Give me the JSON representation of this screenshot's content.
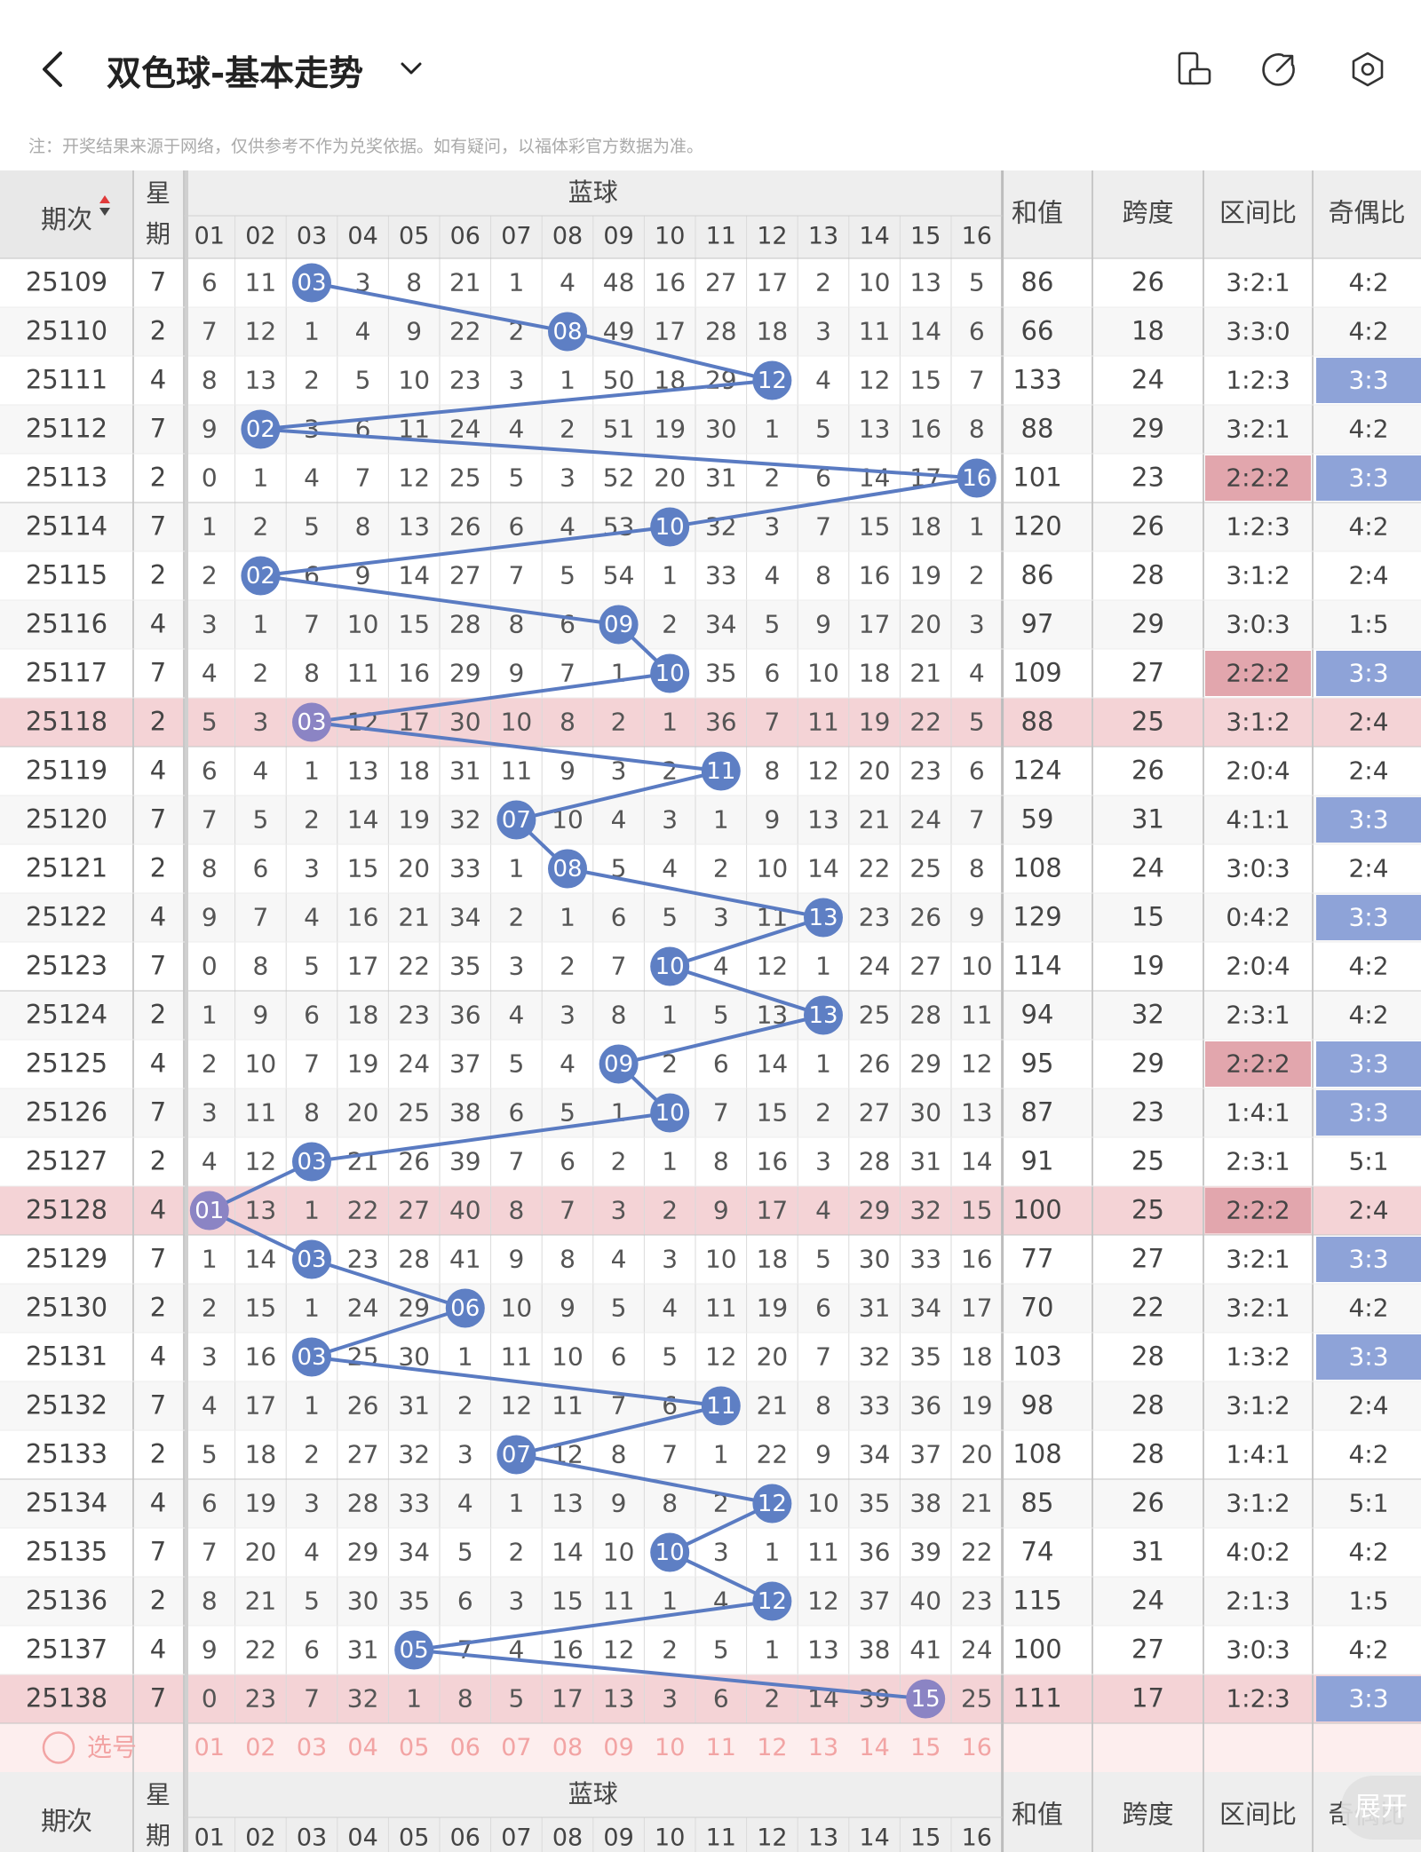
{
  "header": {
    "title": "双色球-基本走势",
    "note": "注：开奖结果来源于网络，仅供参考不作为兑奖依据。如有疑问，以福体彩官方数据为准。"
  },
  "table": {
    "col_period": "期次",
    "col_week": "星期",
    "col_blue": "蓝球",
    "col_sum": "和值",
    "col_span": "跨度",
    "col_range": "区间比",
    "col_oddeven": "奇偶比",
    "ball_labels": [
      "01",
      "02",
      "03",
      "04",
      "05",
      "06",
      "07",
      "08",
      "09",
      "10",
      "11",
      "12",
      "13",
      "14",
      "15",
      "16"
    ],
    "select_label": "选号",
    "footer_period": "-"
  },
  "rows": [
    {
      "p": "25109",
      "w": "7",
      "b": 3,
      "c": [
        "6",
        "11",
        "03",
        "3",
        "8",
        "21",
        "1",
        "4",
        "48",
        "16",
        "27",
        "17",
        "2",
        "10",
        "13",
        "5"
      ],
      "s": "86",
      "k": "26",
      "r": "3:2:1",
      "o": "4:2"
    },
    {
      "p": "25110",
      "w": "2",
      "b": 8,
      "c": [
        "7",
        "12",
        "1",
        "4",
        "9",
        "22",
        "2",
        "08",
        "49",
        "17",
        "28",
        "18",
        "3",
        "11",
        "14",
        "6"
      ],
      "s": "66",
      "k": "18",
      "r": "3:3:0",
      "o": "4:2"
    },
    {
      "p": "25111",
      "w": "4",
      "b": 12,
      "c": [
        "8",
        "13",
        "2",
        "5",
        "10",
        "23",
        "3",
        "1",
        "50",
        "18",
        "29",
        "12",
        "4",
        "12",
        "15",
        "7"
      ],
      "s": "133",
      "k": "24",
      "r": "1:2:3",
      "o": "3:3"
    },
    {
      "p": "25112",
      "w": "7",
      "b": 2,
      "c": [
        "9",
        "02",
        "3",
        "6",
        "11",
        "24",
        "4",
        "2",
        "51",
        "19",
        "30",
        "1",
        "5",
        "13",
        "16",
        "8"
      ],
      "s": "88",
      "k": "29",
      "r": "3:2:1",
      "o": "4:2"
    },
    {
      "p": "25113",
      "w": "2",
      "b": 16,
      "c": [
        "0",
        "1",
        "4",
        "7",
        "12",
        "25",
        "5",
        "3",
        "52",
        "20",
        "31",
        "2",
        "6",
        "14",
        "17",
        "16"
      ],
      "s": "101",
      "k": "23",
      "r": "2:2:2",
      "o": "3:3"
    },
    {
      "p": "25114",
      "w": "7",
      "b": 10,
      "c": [
        "1",
        "2",
        "5",
        "8",
        "13",
        "26",
        "6",
        "4",
        "53",
        "10",
        "32",
        "3",
        "7",
        "15",
        "18",
        "1"
      ],
      "s": "120",
      "k": "26",
      "r": "1:2:3",
      "o": "4:2"
    },
    {
      "p": "25115",
      "w": "2",
      "b": 2,
      "c": [
        "2",
        "02",
        "6",
        "9",
        "14",
        "27",
        "7",
        "5",
        "54",
        "1",
        "33",
        "4",
        "8",
        "16",
        "19",
        "2"
      ],
      "s": "86",
      "k": "28",
      "r": "3:1:2",
      "o": "2:4"
    },
    {
      "p": "25116",
      "w": "4",
      "b": 9,
      "c": [
        "3",
        "1",
        "7",
        "10",
        "15",
        "28",
        "8",
        "6",
        "09",
        "2",
        "34",
        "5",
        "9",
        "17",
        "20",
        "3"
      ],
      "s": "97",
      "k": "29",
      "r": "3:0:3",
      "o": "1:5"
    },
    {
      "p": "25117",
      "w": "7",
      "b": 10,
      "c": [
        "4",
        "2",
        "8",
        "11",
        "16",
        "29",
        "9",
        "7",
        "1",
        "10",
        "35",
        "6",
        "10",
        "18",
        "21",
        "4"
      ],
      "s": "109",
      "k": "27",
      "r": "2:2:2",
      "o": "3:3"
    },
    {
      "p": "25118",
      "w": "2",
      "b": 3,
      "c": [
        "5",
        "3",
        "03",
        "12",
        "17",
        "30",
        "10",
        "8",
        "2",
        "1",
        "36",
        "7",
        "11",
        "19",
        "22",
        "5"
      ],
      "s": "88",
      "k": "25",
      "r": "3:1:2",
      "o": "2:4"
    },
    {
      "p": "25119",
      "w": "4",
      "b": 11,
      "c": [
        "6",
        "4",
        "1",
        "13",
        "18",
        "31",
        "11",
        "9",
        "3",
        "2",
        "11",
        "8",
        "12",
        "20",
        "23",
        "6"
      ],
      "s": "124",
      "k": "26",
      "r": "2:0:4",
      "o": "2:4"
    },
    {
      "p": "25120",
      "w": "7",
      "b": 7,
      "c": [
        "7",
        "5",
        "2",
        "14",
        "19",
        "32",
        "07",
        "10",
        "4",
        "3",
        "1",
        "9",
        "13",
        "21",
        "24",
        "7"
      ],
      "s": "59",
      "k": "31",
      "r": "4:1:1",
      "o": "3:3"
    },
    {
      "p": "25121",
      "w": "2",
      "b": 8,
      "c": [
        "8",
        "6",
        "3",
        "15",
        "20",
        "33",
        "1",
        "08",
        "5",
        "4",
        "2",
        "10",
        "14",
        "22",
        "25",
        "8"
      ],
      "s": "108",
      "k": "24",
      "r": "3:0:3",
      "o": "2:4"
    },
    {
      "p": "25122",
      "w": "4",
      "b": 13,
      "c": [
        "9",
        "7",
        "4",
        "16",
        "21",
        "34",
        "2",
        "1",
        "6",
        "5",
        "3",
        "11",
        "13",
        "23",
        "26",
        "9"
      ],
      "s": "129",
      "k": "15",
      "r": "0:4:2",
      "o": "3:3"
    },
    {
      "p": "25123",
      "w": "7",
      "b": 10,
      "c": [
        "0",
        "8",
        "5",
        "17",
        "22",
        "35",
        "3",
        "2",
        "7",
        "10",
        "4",
        "12",
        "1",
        "24",
        "27",
        "10"
      ],
      "s": "114",
      "k": "19",
      "r": "2:0:4",
      "o": "4:2"
    },
    {
      "p": "25124",
      "w": "2",
      "b": 13,
      "c": [
        "1",
        "9",
        "6",
        "18",
        "23",
        "36",
        "4",
        "3",
        "8",
        "1",
        "5",
        "13",
        "13",
        "25",
        "28",
        "11"
      ],
      "s": "94",
      "k": "32",
      "r": "2:3:1",
      "o": "4:2"
    },
    {
      "p": "25125",
      "w": "4",
      "b": 9,
      "c": [
        "2",
        "10",
        "7",
        "19",
        "24",
        "37",
        "5",
        "4",
        "09",
        "2",
        "6",
        "14",
        "1",
        "26",
        "29",
        "12"
      ],
      "s": "95",
      "k": "29",
      "r": "2:2:2",
      "o": "3:3"
    },
    {
      "p": "25126",
      "w": "7",
      "b": 10,
      "c": [
        "3",
        "11",
        "8",
        "20",
        "25",
        "38",
        "6",
        "5",
        "1",
        "10",
        "7",
        "15",
        "2",
        "27",
        "30",
        "13"
      ],
      "s": "87",
      "k": "23",
      "r": "1:4:1",
      "o": "3:3"
    },
    {
      "p": "25127",
      "w": "2",
      "b": 3,
      "c": [
        "4",
        "12",
        "03",
        "21",
        "26",
        "39",
        "7",
        "6",
        "2",
        "1",
        "8",
        "16",
        "3",
        "28",
        "31",
        "14"
      ],
      "s": "91",
      "k": "25",
      "r": "2:3:1",
      "o": "5:1"
    },
    {
      "p": "25128",
      "w": "4",
      "b": 1,
      "c": [
        "01",
        "13",
        "1",
        "22",
        "27",
        "40",
        "8",
        "7",
        "3",
        "2",
        "9",
        "17",
        "4",
        "29",
        "32",
        "15"
      ],
      "s": "100",
      "k": "25",
      "r": "2:2:2",
      "o": "2:4"
    },
    {
      "p": "25129",
      "w": "7",
      "b": 3,
      "c": [
        "1",
        "14",
        "03",
        "23",
        "28",
        "41",
        "9",
        "8",
        "4",
        "3",
        "10",
        "18",
        "5",
        "30",
        "33",
        "16"
      ],
      "s": "77",
      "k": "27",
      "r": "3:2:1",
      "o": "3:3"
    },
    {
      "p": "25130",
      "w": "2",
      "b": 6,
      "c": [
        "2",
        "15",
        "1",
        "24",
        "29",
        "06",
        "10",
        "9",
        "5",
        "4",
        "11",
        "19",
        "6",
        "31",
        "34",
        "17"
      ],
      "s": "70",
      "k": "22",
      "r": "3:2:1",
      "o": "4:2"
    },
    {
      "p": "25131",
      "w": "4",
      "b": 3,
      "c": [
        "3",
        "16",
        "03",
        "25",
        "30",
        "1",
        "11",
        "10",
        "6",
        "5",
        "12",
        "20",
        "7",
        "32",
        "35",
        "18"
      ],
      "s": "103",
      "k": "28",
      "r": "1:3:2",
      "o": "3:3"
    },
    {
      "p": "25132",
      "w": "7",
      "b": 11,
      "c": [
        "4",
        "17",
        "1",
        "26",
        "31",
        "2",
        "12",
        "11",
        "7",
        "6",
        "11",
        "21",
        "8",
        "33",
        "36",
        "19"
      ],
      "s": "98",
      "k": "28",
      "r": "3:1:2",
      "o": "2:4"
    },
    {
      "p": "25133",
      "w": "2",
      "b": 7,
      "c": [
        "5",
        "18",
        "2",
        "27",
        "32",
        "3",
        "07",
        "12",
        "8",
        "7",
        "1",
        "22",
        "9",
        "34",
        "37",
        "20"
      ],
      "s": "108",
      "k": "28",
      "r": "1:4:1",
      "o": "4:2"
    },
    {
      "p": "25134",
      "w": "4",
      "b": 12,
      "c": [
        "6",
        "19",
        "3",
        "28",
        "33",
        "4",
        "1",
        "13",
        "9",
        "8",
        "2",
        "12",
        "10",
        "35",
        "38",
        "21"
      ],
      "s": "85",
      "k": "26",
      "r": "3:1:2",
      "o": "5:1"
    },
    {
      "p": "25135",
      "w": "7",
      "b": 10,
      "c": [
        "7",
        "20",
        "4",
        "29",
        "34",
        "5",
        "2",
        "14",
        "10",
        "10",
        "3",
        "1",
        "11",
        "36",
        "39",
        "22"
      ],
      "s": "74",
      "k": "31",
      "r": "4:0:2",
      "o": "4:2"
    },
    {
      "p": "25136",
      "w": "2",
      "b": 12,
      "c": [
        "8",
        "21",
        "5",
        "30",
        "35",
        "6",
        "3",
        "15",
        "11",
        "1",
        "4",
        "12",
        "12",
        "37",
        "40",
        "23"
      ],
      "s": "115",
      "k": "24",
      "r": "2:1:3",
      "o": "1:5"
    },
    {
      "p": "25137",
      "w": "4",
      "b": 5,
      "c": [
        "9",
        "22",
        "6",
        "31",
        "05",
        "7",
        "4",
        "16",
        "12",
        "2",
        "5",
        "1",
        "13",
        "38",
        "41",
        "24"
      ],
      "s": "100",
      "k": "27",
      "r": "3:0:3",
      "o": "4:2"
    },
    {
      "p": "25138",
      "w": "7",
      "b": 15,
      "c": [
        "0",
        "23",
        "7",
        "32",
        "1",
        "8",
        "5",
        "17",
        "13",
        "3",
        "6",
        "2",
        "14",
        "39",
        "15",
        "25"
      ],
      "s": "111",
      "k": "17",
      "r": "1:2:3",
      "o": "3:3"
    }
  ],
  "highlight_rows": [
    "25118",
    "25128",
    "25138"
  ],
  "colors": {
    "ball": "#5e7fc4",
    "line": "#5a7bc2",
    "highlight_row": "#f4d3d6",
    "range_highlight": "#e2a6ad",
    "oddeven_highlight": "#8ea3d8",
    "header_bg": "#eeeeee",
    "select_row": "#fdeeee",
    "select_text": "#f2a4a4"
  },
  "fab": {
    "label": "展开"
  }
}
